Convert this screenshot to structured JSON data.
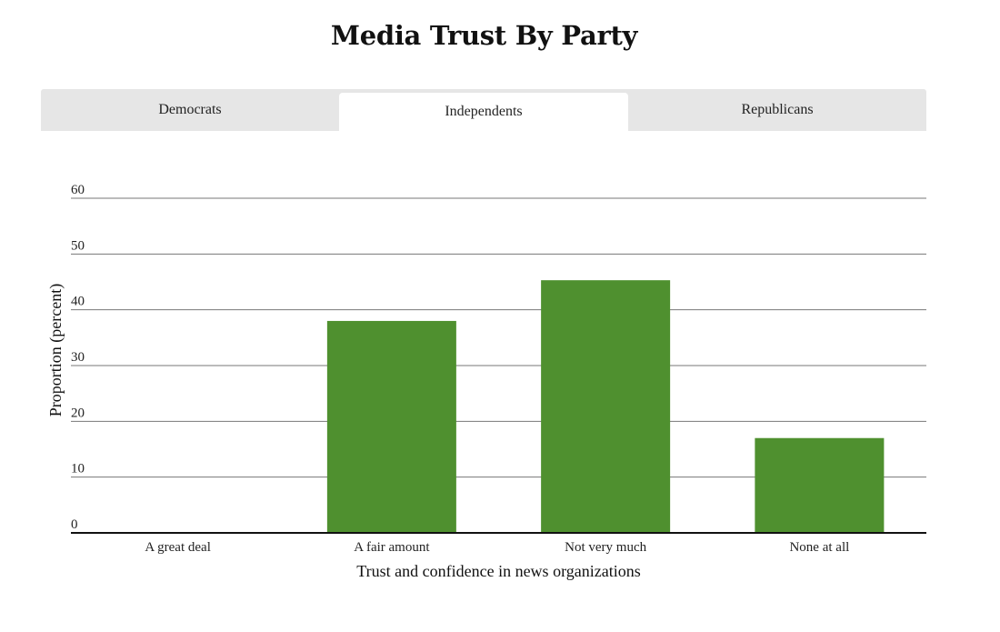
{
  "chart_data": {
    "type": "bar",
    "title": "Media Trust By Party",
    "xlabel": "Trust and confidence in news organizations",
    "ylabel": "Proportion (percent)",
    "categories": [
      "A great deal",
      "A fair amount",
      "Not very much",
      "None at all"
    ],
    "series": [
      {
        "values": [
          0,
          38,
          45.3,
          17
        ]
      }
    ],
    "ylim": [
      0,
      60
    ],
    "yticks": [
      "0",
      "10",
      "20",
      "30",
      "40",
      "50",
      "60"
    ],
    "grid": true,
    "bar_color": "#4f902f"
  },
  "tabs": [
    {
      "label": "Democrats",
      "selected": false
    },
    {
      "label": "Independents",
      "selected": true
    },
    {
      "label": "Republicans",
      "selected": false
    }
  ]
}
